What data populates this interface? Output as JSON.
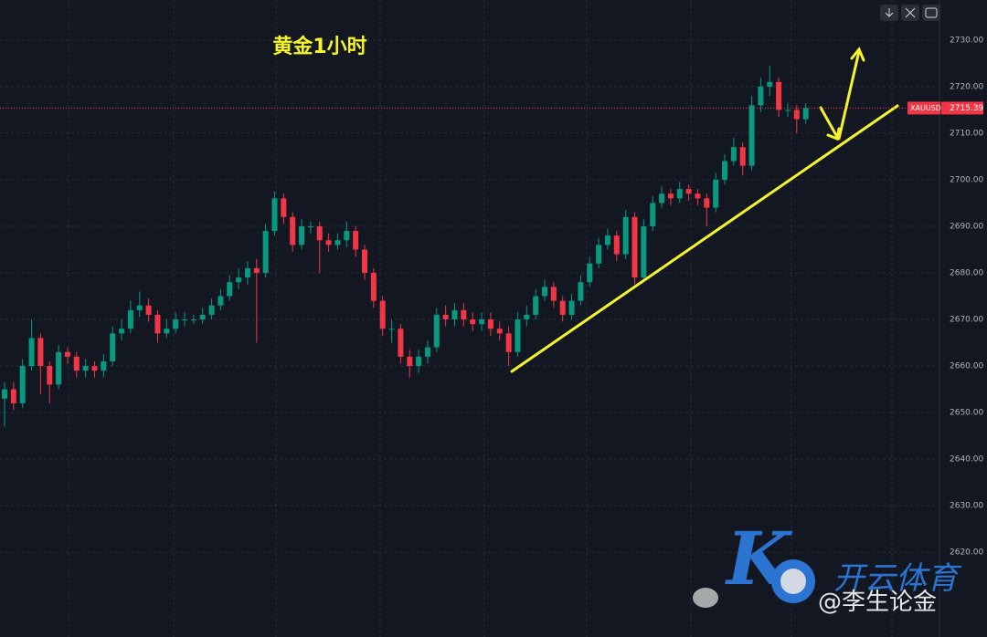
{
  "chart_data": {
    "type": "candlestick",
    "title": "黄金1小时",
    "symbol": "XAUUSD",
    "last_price": 2715.39,
    "up_color": "#089981",
    "down_color": "#f23645",
    "grid": true,
    "ylim": [
      2601.8,
      2738.6
    ],
    "yticks": [
      {
        "value": 2620,
        "label": "2620.00"
      },
      {
        "value": 2630,
        "label": "2630.00"
      },
      {
        "value": 2640,
        "label": "2640.00"
      },
      {
        "value": 2650,
        "label": "2650.00"
      },
      {
        "value": 2660,
        "label": "2660.00"
      },
      {
        "value": 2670,
        "label": "2670.00"
      },
      {
        "value": 2680,
        "label": "2680.00"
      },
      {
        "value": 2690,
        "label": "2690.00"
      },
      {
        "value": 2700,
        "label": "2700.00"
      },
      {
        "value": 2710,
        "label": "2710.00"
      },
      {
        "value": 2720,
        "label": "2720.00"
      },
      {
        "value": 2730,
        "label": "2730.00"
      }
    ],
    "open": [
      2653,
      2655,
      2652,
      2660,
      2666,
      2660,
      2656,
      2663,
      2662,
      2659,
      2660,
      2659,
      2661,
      2667,
      2668,
      2672,
      2673,
      2671,
      2667,
      2668,
      2670,
      2670,
      2670,
      2671,
      2673,
      2675,
      2678,
      2679,
      2681,
      2680,
      2689,
      2696,
      2692,
      2686,
      2690,
      2690,
      2687,
      2686,
      2687,
      2689,
      2685,
      2680,
      2674,
      2668,
      2668,
      2662,
      2660,
      2662,
      2664,
      2671,
      2670,
      2672,
      2670,
      2669,
      2670,
      2668,
      2667,
      2663,
      2670,
      2671,
      2675,
      2677,
      2674,
      2671,
      2674,
      2678,
      2682,
      2686,
      2688,
      2684,
      2692,
      2679,
      2690,
      2695,
      2697,
      2696,
      2698,
      2697,
      2696,
      2694,
      2700,
      2704,
      2707,
      2703,
      2716,
      2720,
      2721,
      2715,
      2715,
      2713
    ],
    "high": [
      2656.5,
      2656.5,
      2661.5,
      2670,
      2667,
      2661,
      2664.5,
      2664,
      2663,
      2661.5,
      2661,
      2662.5,
      2668.5,
      2670,
      2674,
      2676,
      2674.5,
      2672,
      2670,
      2671.5,
      2671.5,
      2671,
      2672.5,
      2674.5,
      2676.5,
      2679.5,
      2681,
      2682.5,
      2683,
      2690.5,
      2697.5,
      2697,
      2693,
      2691.5,
      2691,
      2691,
      2688.5,
      2688.5,
      2691,
      2690,
      2686,
      2681,
      2675,
      2670,
      2669,
      2663.5,
      2663.5,
      2665.5,
      2672.5,
      2673,
      2673.5,
      2673.5,
      2671.5,
      2671.5,
      2671.5,
      2669.5,
      2668.5,
      2671.5,
      2673,
      2676.5,
      2678.5,
      2678,
      2675,
      2675.5,
      2679.5,
      2683.5,
      2687.5,
      2689.5,
      2689,
      2693.5,
      2693,
      2691.5,
      2696.5,
      2698.5,
      2698,
      2699.5,
      2699,
      2698,
      2697,
      2701.5,
      2705.5,
      2709,
      2708,
      2718,
      2722,
      2724.5,
      2722,
      2716.5,
      2716,
      2716.5
    ],
    "low": [
      2647,
      2650.5,
      2651,
      2659,
      2654,
      2652,
      2655,
      2660.5,
      2657.5,
      2657.5,
      2657.5,
      2657.5,
      2660,
      2665.5,
      2667,
      2670.5,
      2669.5,
      2665,
      2666,
      2667,
      2668.5,
      2669,
      2669,
      2670,
      2672,
      2674,
      2676.5,
      2677.5,
      2665,
      2679,
      2688,
      2690.5,
      2684.5,
      2685,
      2688.5,
      2680,
      2684.5,
      2685,
      2685.5,
      2683.5,
      2678.5,
      2672.5,
      2666.5,
      2665,
      2660.5,
      2657.5,
      2658.5,
      2660.5,
      2663,
      2668.5,
      2668.5,
      2668.5,
      2667.5,
      2667.5,
      2666.5,
      2665.5,
      2660,
      2662,
      2668.5,
      2670,
      2674,
      2672.5,
      2669.5,
      2670,
      2673,
      2677,
      2681,
      2685,
      2682.5,
      2683,
      2677.5,
      2678,
      2689,
      2694,
      2694.5,
      2695,
      2695.5,
      2694.5,
      2690,
      2693,
      2699,
      2703,
      2701,
      2702,
      2714.5,
      2718,
      2713.5,
      2713.5,
      2710,
      2712
    ],
    "close": [
      2655,
      2652,
      2660,
      2666,
      2660,
      2656,
      2663,
      2662,
      2659,
      2660,
      2659,
      2661,
      2667,
      2668,
      2672,
      2673,
      2671,
      2667,
      2668,
      2670,
      2670,
      2670,
      2671,
      2673,
      2675,
      2678,
      2679,
      2681,
      2680,
      2689,
      2696,
      2692,
      2686,
      2690,
      2690,
      2687,
      2686,
      2687,
      2689,
      2685,
      2680,
      2674,
      2668,
      2668,
      2662,
      2660,
      2662,
      2664,
      2671,
      2670,
      2672,
      2670,
      2669,
      2670,
      2668,
      2667,
      2663,
      2670,
      2671,
      2675,
      2677,
      2674,
      2671,
      2674,
      2678,
      2682,
      2686,
      2688,
      2684,
      2692,
      2679,
      2690,
      2695,
      2697,
      2696,
      2698,
      2697,
      2696,
      2694,
      2700,
      2704,
      2707,
      2703,
      2716,
      2720,
      2721,
      2715,
      2715,
      2713,
      2715.39
    ]
  },
  "watermark": {
    "brand": "开云体育",
    "author": "@李生论金"
  }
}
